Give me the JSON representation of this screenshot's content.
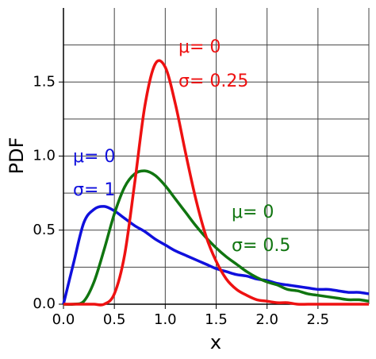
{
  "chart_data": {
    "type": "line",
    "x_label": "x",
    "y_label": "PDF",
    "x": [
      0,
      0.1,
      0.2,
      0.3,
      0.4,
      0.5,
      0.6,
      0.7,
      0.8,
      0.9,
      1.0,
      1.1,
      1.2,
      1.3,
      1.4,
      1.5,
      1.6,
      1.7,
      1.8,
      1.9,
      2.0,
      2.1,
      2.2,
      2.3,
      2.4,
      2.5,
      2.6,
      2.7,
      2.8,
      2.9,
      3.0
    ],
    "series": [
      {
        "color": "#1010dd",
        "values": [
          0,
          0.28,
          0.55,
          0.64,
          0.66,
          0.63,
          0.58,
          0.53,
          0.49,
          0.44,
          0.4,
          0.36,
          0.33,
          0.3,
          0.27,
          0.24,
          0.22,
          0.2,
          0.19,
          0.17,
          0.16,
          0.14,
          0.13,
          0.12,
          0.11,
          0.1,
          0.1,
          0.09,
          0.08,
          0.08,
          0.07
        ]
      },
      {
        "color": "#107510",
        "values": [
          0,
          0.0,
          0.02,
          0.15,
          0.37,
          0.61,
          0.79,
          0.88,
          0.9,
          0.87,
          0.8,
          0.71,
          0.62,
          0.53,
          0.45,
          0.38,
          0.32,
          0.27,
          0.22,
          0.18,
          0.15,
          0.13,
          0.1,
          0.09,
          0.07,
          0.06,
          0.05,
          0.04,
          0.03,
          0.03,
          0.02
        ]
      },
      {
        "color": "#ee1111",
        "values": [
          0,
          0,
          0,
          0,
          0.0,
          0.07,
          0.33,
          0.82,
          1.34,
          1.62,
          1.6,
          1.35,
          1.02,
          0.71,
          0.46,
          0.29,
          0.17,
          0.1,
          0.06,
          0.03,
          0.02,
          0.01,
          0.01,
          0,
          0,
          0,
          0,
          0,
          0,
          0,
          0
        ]
      }
    ],
    "annotations": [
      {
        "text": "μ= 0",
        "series": 0
      },
      {
        "text": "σ= 1",
        "series": 0
      },
      {
        "text": "μ= 0",
        "series": 1
      },
      {
        "text": "σ= 0.5",
        "series": 1
      },
      {
        "text": "μ= 0",
        "series": 2
      },
      {
        "text": "σ= 0.25",
        "series": 2
      }
    ],
    "xlim": [
      0,
      3
    ],
    "ylim": [
      0,
      2
    ],
    "xticks": [
      {
        "value": 0,
        "label": "0.0"
      },
      0.5,
      {
        "value": 1,
        "label": "1.0"
      },
      1.5,
      {
        "value": 2,
        "label": "2.0"
      },
      2.5
    ],
    "yticks": [
      {
        "value": 0,
        "label": "0.0"
      },
      0.5,
      {
        "value": 1,
        "label": "1.0"
      },
      1.5
    ],
    "xgrid": [
      3
    ],
    "ygrid": [
      0.25,
      0.75,
      1.25,
      1.75
    ],
    "grid": true
  }
}
